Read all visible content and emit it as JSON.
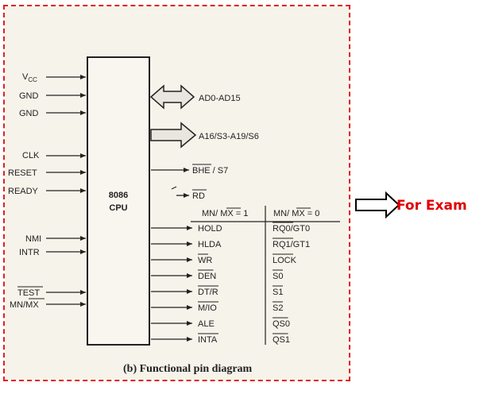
{
  "left_pins": [
    {
      "label": "V",
      "sub": "CC",
      "overline": false
    },
    {
      "label": "GND",
      "sub": "",
      "overline": false
    },
    {
      "label": "GND",
      "sub": "",
      "overline": false
    },
    {
      "label": "CLK",
      "sub": "",
      "overline": false
    },
    {
      "label": "RESET",
      "sub": "",
      "overline": false
    },
    {
      "label": "READY",
      "sub": "",
      "overline": false
    },
    {
      "label": "NMI",
      "sub": "",
      "overline": false
    },
    {
      "label": "INTR",
      "sub": "",
      "overline": false
    },
    {
      "label": "TEST",
      "sub": "",
      "overline": true
    },
    {
      "label": "MN/MX",
      "sub": "",
      "overline": false
    }
  ],
  "chip": {
    "line1": "8086",
    "line2": "CPU"
  },
  "bus_pins": [
    {
      "label": "AD0-AD15"
    },
    {
      "label": "A16/S3-A19/S6"
    }
  ],
  "single_pins": [
    {
      "label": "BHE / S7"
    },
    {
      "label": "RD"
    }
  ],
  "mode_headers": {
    "min": "MN/ MX = 1",
    "max": "MN/ MX = 0"
  },
  "mode_rows": [
    {
      "min": "HOLD",
      "max": "RQ0/GT0"
    },
    {
      "min": "HLDA",
      "max": "RQ1/GT1"
    },
    {
      "min": "WR",
      "max": "LOCK"
    },
    {
      "min": "DEN",
      "max": "S0"
    },
    {
      "min": "DT/R",
      "max": "S1"
    },
    {
      "min": "M/IO",
      "max": "S2"
    },
    {
      "min": "ALE",
      "max": "QS0"
    },
    {
      "min": "INTA",
      "max": "QS1"
    }
  ],
  "caption": "(b) Functional pin diagram",
  "annotation": "For Exam",
  "colors": {
    "frame": "#e02020",
    "annotation": "#e00000",
    "ink": "#222222"
  }
}
